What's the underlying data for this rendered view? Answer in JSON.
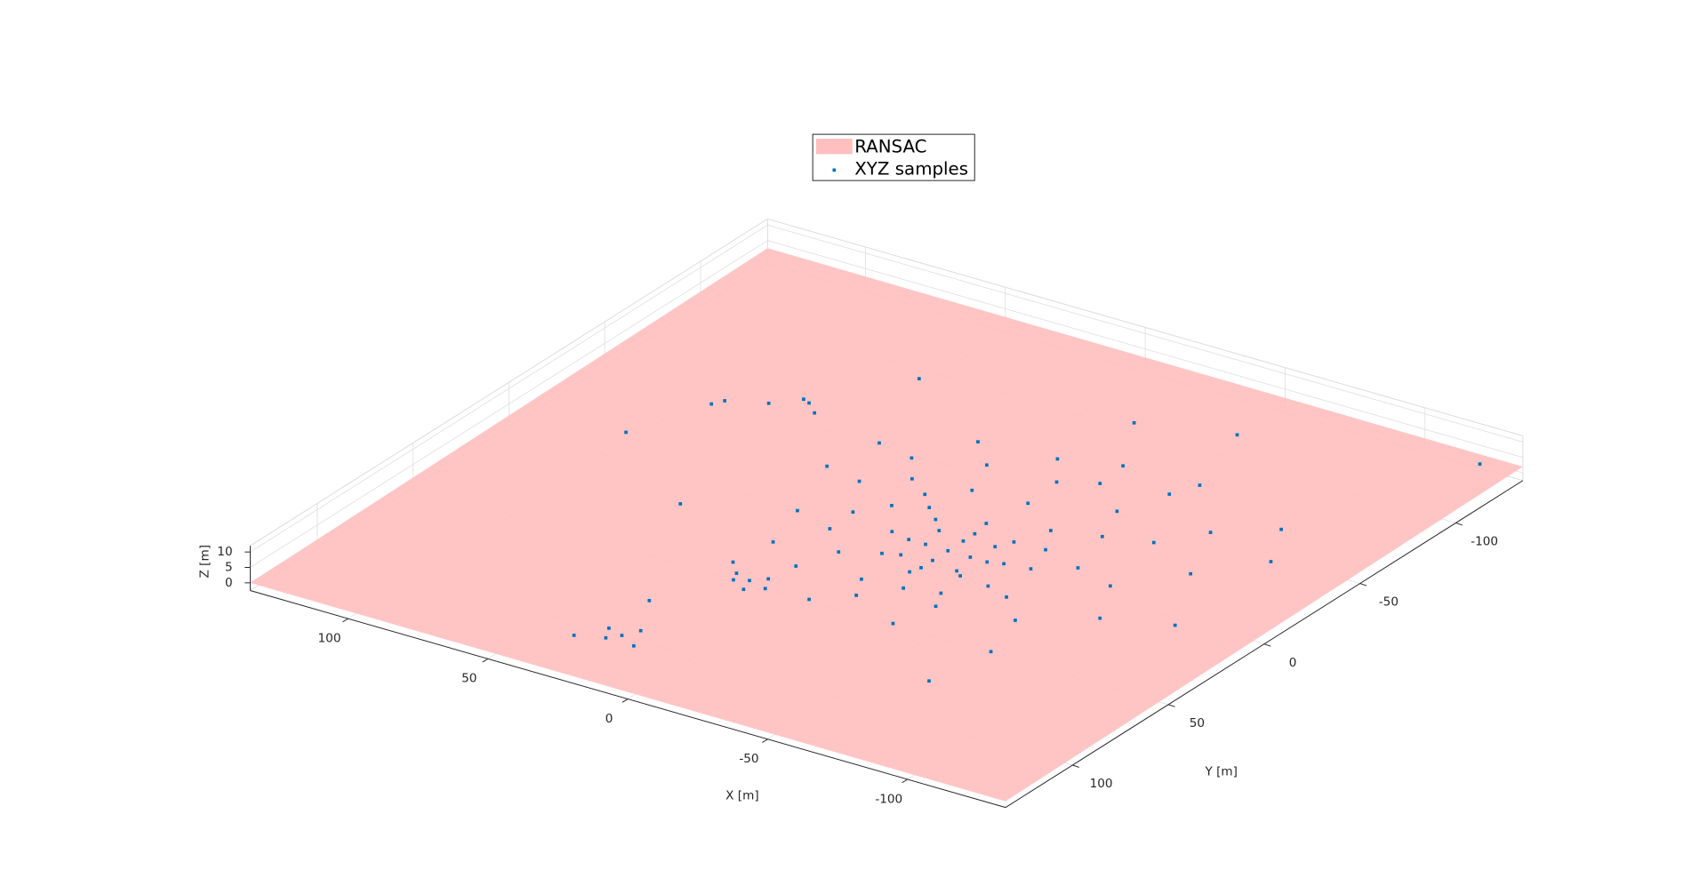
{
  "chart_data": {
    "type": "scatter3d",
    "xlabel": "X [m]",
    "ylabel": "Y [m]",
    "zlabel": "Z [m]",
    "xlim": [
      -135,
      135
    ],
    "ylim": [
      -135,
      135
    ],
    "zlim": [
      -2.5,
      12
    ],
    "xticks": [
      -100,
      -50,
      0,
      50,
      100
    ],
    "yticks": [
      -100,
      -50,
      0,
      50,
      100
    ],
    "zticks": [
      0,
      5,
      10
    ],
    "grid": true,
    "legend": "north",
    "series": [
      {
        "name": "RANSAC",
        "type": "surface",
        "color": "#ffbfbf",
        "x": [
          135,
          -135,
          -135,
          135
        ],
        "y": [
          135,
          135,
          -135,
          -135
        ],
        "z": [
          0,
          -0.5,
          2,
          2.5
        ]
      },
      {
        "name": "XYZ samples",
        "color": "#0072bd",
        "x": [
          -24,
          -16,
          -32,
          -24,
          -24,
          -10,
          -38,
          -24,
          -24,
          -14,
          -34,
          -14,
          -34,
          -4,
          -44,
          -24,
          -24,
          -10,
          -38,
          -10,
          -38,
          -5,
          0,
          5,
          -45,
          -50,
          -55,
          -50,
          -40,
          -30,
          -15,
          0,
          10,
          12,
          8,
          -10,
          -30,
          -60,
          -65,
          -60,
          -45,
          -20,
          5,
          20,
          25,
          20,
          15,
          -5,
          -30,
          -55,
          -75,
          -80,
          -70,
          -40,
          -10,
          -60,
          -40,
          -20,
          5,
          30,
          35,
          -85,
          -95,
          -90,
          -75,
          -100,
          -110,
          -64,
          -40,
          -121,
          12,
          15,
          8,
          18,
          10,
          22,
          5,
          22,
          25,
          18,
          28,
          35,
          15,
          64,
          60,
          68,
          75,
          90,
          88,
          100,
          30,
          60,
          -110,
          -70,
          50,
          -20,
          -50
        ],
        "y": [
          3,
          3,
          3,
          11,
          -5,
          3,
          3,
          17,
          -11,
          13,
          -7,
          -7,
          13,
          3,
          3,
          23,
          -17,
          17,
          -11,
          -11,
          17,
          -15,
          -20,
          -10,
          -20,
          -10,
          5,
          20,
          30,
          35,
          35,
          25,
          15,
          0,
          -25,
          -30,
          -30,
          -25,
          -5,
          25,
          40,
          45,
          40,
          30,
          10,
          -15,
          -35,
          -45,
          -45,
          -40,
          -30,
          0,
          35,
          55,
          55,
          -60,
          -65,
          -60,
          -55,
          -40,
          -20,
          -45,
          -20,
          20,
          55,
          -60,
          -40,
          -70,
          -53,
          -133,
          54,
          58,
          50,
          52,
          60,
          48,
          56,
          106,
          110,
          102,
          104,
          112,
          110,
          -53,
          -50,
          -56,
          -48,
          -40,
          -44,
          -10,
          80,
          20,
          10,
          80,
          -90,
          -100,
          -110
        ],
        "z": [
          0,
          0,
          0,
          0,
          0,
          0,
          0,
          0,
          0,
          0,
          0,
          0,
          0,
          1,
          1,
          1,
          1,
          1,
          1,
          1,
          1,
          2,
          3,
          2,
          3,
          2,
          3,
          2,
          1,
          2,
          1,
          2,
          3,
          2,
          4,
          3,
          4,
          3,
          2,
          3,
          2,
          1,
          2,
          2,
          3,
          4,
          5,
          4,
          5,
          4,
          3,
          2,
          2,
          1,
          1,
          3,
          5,
          4,
          5,
          4,
          3,
          3,
          2,
          2,
          1,
          2,
          2,
          3,
          4,
          0,
          1,
          2,
          1,
          1,
          1,
          2,
          1,
          1,
          1,
          2,
          1,
          0,
          1,
          3,
          2,
          2,
          2,
          1,
          1,
          1,
          0,
          0,
          1,
          0,
          0,
          0,
          0
        ]
      }
    ]
  }
}
